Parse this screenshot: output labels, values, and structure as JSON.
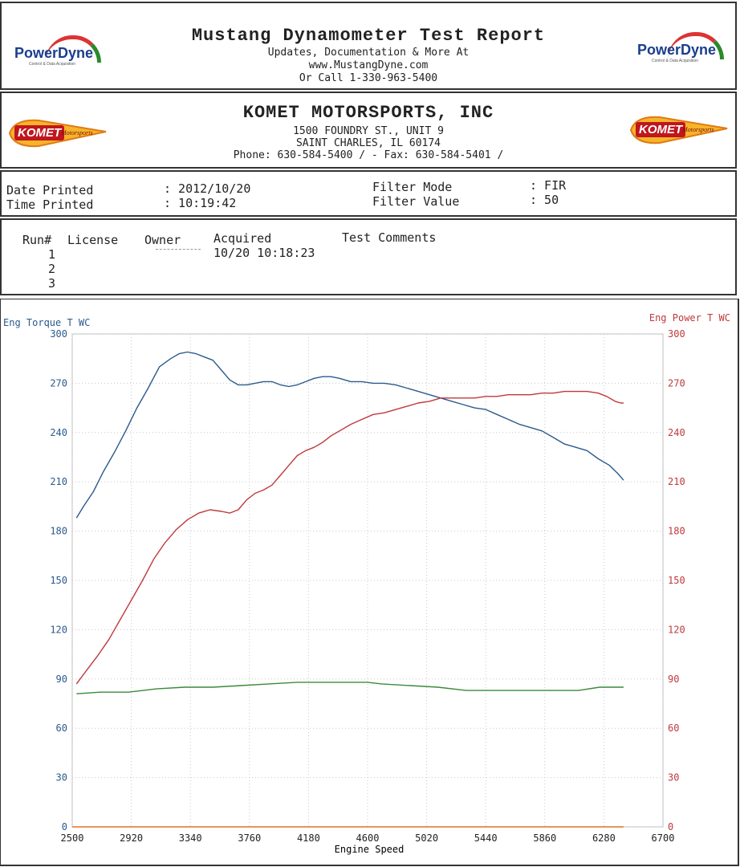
{
  "header": {
    "title": "Mustang Dynamometer Test Report",
    "line1": "Updates, Documentation & More At",
    "line2": "www.MustangDyne.com",
    "line3": "Or Call 1-330-963-5400",
    "logo_left": "PowerDyne",
    "logo_right": "PowerDyne"
  },
  "shop": {
    "name": "KOMET MOTORSPORTS, INC",
    "address1": "1500 FOUNDRY ST., UNIT 9",
    "address2": "SAINT CHARLES, IL  60174",
    "phone": "Phone: 630-584-5400 /  - Fax: 630-584-5401 /",
    "logo_text": "KOMET",
    "logo_sub": "Motorsports"
  },
  "info": {
    "date_label": "Date Printed",
    "date_value": ": 2012/10/20",
    "time_label": "Time Printed",
    "time_value": ": 10:19:42",
    "filter_mode_label": "Filter Mode",
    "filter_mode_value": ": FIR",
    "filter_value_label": "Filter Value",
    "filter_value_value": ": 50"
  },
  "runs": {
    "headers": [
      "Run#",
      "License",
      "Owner",
      "Acquired",
      "Test Comments"
    ],
    "rows": [
      {
        "run": "1",
        "acquired": "10/20 10:18:23"
      },
      {
        "run": "2",
        "acquired": ""
      },
      {
        "run": "3",
        "acquired": ""
      }
    ]
  },
  "chart_data": {
    "type": "line",
    "xlabel": "Engine Speed",
    "ylabel_left": "Eng Torque T WC",
    "ylabel_right": "Eng Power T WC",
    "xlim": [
      2500,
      6700
    ],
    "x_ticks": [
      2500,
      2920,
      3340,
      3760,
      4180,
      4600,
      5020,
      5440,
      5860,
      6280,
      6700
    ],
    "ylim_left": [
      0,
      300
    ],
    "ylim_right": [
      0,
      300
    ],
    "y_ticks": [
      0,
      30,
      60,
      90,
      120,
      150,
      180,
      210,
      240,
      270,
      300
    ],
    "grid": true,
    "colors": {
      "torque": "#2b5a8c",
      "power": "#c0393b",
      "third": "#3a8a3a",
      "zero": "#e07020"
    },
    "series": [
      {
        "axis": "left",
        "color": "#2b5a8c",
        "x": [
          2530,
          2580,
          2650,
          2720,
          2800,
          2880,
          2960,
          3040,
          3120,
          3200,
          3260,
          3320,
          3380,
          3440,
          3500,
          3560,
          3620,
          3680,
          3740,
          3800,
          3860,
          3920,
          3980,
          4040,
          4100,
          4160,
          4220,
          4280,
          4340,
          4400,
          4480,
          4560,
          4640,
          4720,
          4800,
          4880,
          4960,
          5040,
          5120,
          5200,
          5280,
          5360,
          5440,
          5520,
          5600,
          5680,
          5760,
          5840,
          5920,
          6000,
          6080,
          6160,
          6240,
          6320,
          6380,
          6420
        ],
        "y": [
          188,
          195,
          204,
          216,
          228,
          241,
          255,
          267,
          280,
          285,
          288,
          289,
          288,
          286,
          284,
          278,
          272,
          269,
          269,
          270,
          271,
          271,
          269,
          268,
          269,
          271,
          273,
          274,
          274,
          273,
          271,
          271,
          270,
          270,
          269,
          267,
          265,
          263,
          261,
          259,
          257,
          255,
          254,
          251,
          248,
          245,
          243,
          241,
          237,
          233,
          231,
          229,
          224,
          220,
          215,
          211
        ]
      },
      {
        "axis": "right",
        "color": "#c0393b",
        "x": [
          2530,
          2600,
          2680,
          2760,
          2840,
          2920,
          3000,
          3080,
          3160,
          3240,
          3320,
          3400,
          3480,
          3560,
          3620,
          3680,
          3740,
          3800,
          3860,
          3920,
          3980,
          4040,
          4100,
          4160,
          4220,
          4280,
          4340,
          4400,
          4480,
          4560,
          4640,
          4720,
          4800,
          4880,
          4960,
          5040,
          5120,
          5200,
          5280,
          5360,
          5440,
          5520,
          5600,
          5680,
          5760,
          5840,
          5920,
          6000,
          6080,
          6160,
          6240,
          6300,
          6360,
          6400,
          6420
        ],
        "y": [
          87,
          95,
          104,
          114,
          126,
          138,
          150,
          163,
          173,
          181,
          187,
          191,
          193,
          192,
          191,
          193,
          199,
          203,
          205,
          208,
          214,
          220,
          226,
          229,
          231,
          234,
          238,
          241,
          245,
          248,
          251,
          252,
          254,
          256,
          258,
          259,
          261,
          261,
          261,
          261,
          262,
          262,
          263,
          263,
          263,
          264,
          264,
          265,
          265,
          265,
          264,
          262,
          259,
          258,
          258
        ]
      },
      {
        "axis": "left",
        "color": "#3a8a3a",
        "x": [
          2530,
          2700,
          2900,
          3100,
          3300,
          3500,
          3700,
          3900,
          4100,
          4300,
          4500,
          4600,
          4700,
          4900,
          5100,
          5300,
          5500,
          5700,
          5900,
          6100,
          6250,
          6420
        ],
        "y": [
          81,
          82,
          82,
          84,
          85,
          85,
          86,
          87,
          88,
          88,
          88,
          88,
          87,
          86,
          85,
          83,
          83,
          83,
          83,
          83,
          85,
          85
        ]
      },
      {
        "axis": "left",
        "color": "#e07020",
        "x": [
          2500,
          6420
        ],
        "y": [
          0,
          0
        ]
      }
    ]
  }
}
